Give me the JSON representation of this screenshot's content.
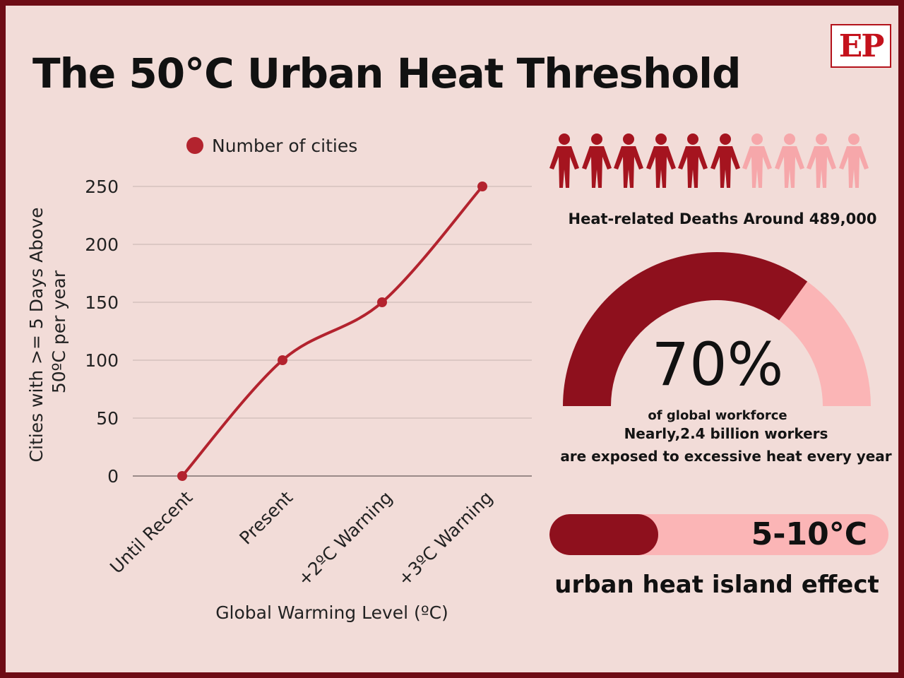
{
  "title": "The 50°C Urban Heat Threshold",
  "logo": {
    "text": "EP"
  },
  "colors": {
    "background": "#f2dcd8",
    "border": "#6e0c15",
    "series": "#b3232e",
    "dark_red": "#8e101d",
    "light_pink": "#fbb5b6"
  },
  "chart_data": {
    "type": "line",
    "x": [
      "Until Recent",
      "Present",
      "+2ºC Warning",
      "+3ºC Warning"
    ],
    "series": [
      {
        "name": "Number of cities",
        "values": [
          0,
          100,
          150,
          250
        ]
      }
    ],
    "xlabel": "Global Warming Level (ºC)",
    "ylabel_lines": [
      "Cities with >= 5 Days Above",
      "50ºC per year"
    ],
    "yticks": [
      0,
      50,
      100,
      150,
      200,
      250
    ],
    "ylim": [
      0,
      250
    ],
    "grid": true,
    "legend": "top",
    "smooth": true
  },
  "deaths": {
    "people_total": 10,
    "people_highlighted": 6,
    "icon": "person-icon",
    "label": "Heat-related Deaths Around 489,000"
  },
  "workforce": {
    "percent": 70,
    "value_label": "70%",
    "caption": "of  global workforce",
    "line1": "Nearly,2.4 billion workers",
    "line2": "are exposed to excessive heat every year"
  },
  "heat_island": {
    "value": "5-10°C",
    "fill_fraction": 0.32,
    "label": "urban heat island effect"
  }
}
